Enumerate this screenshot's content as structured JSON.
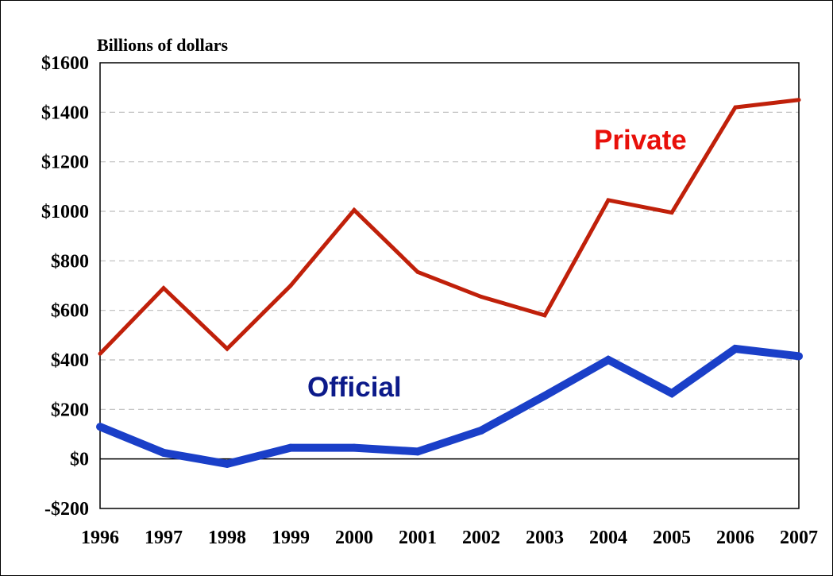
{
  "chart_data": {
    "type": "line",
    "title": "",
    "ylabel": "Billions of dollars",
    "xlabel": "",
    "x": [
      1996,
      1997,
      1998,
      1999,
      2000,
      2001,
      2002,
      2003,
      2004,
      2005,
      2006,
      2007
    ],
    "x_tick_labels": [
      "1996",
      "1997",
      "1998",
      "1999",
      "2000",
      "2001",
      "2002",
      "2003",
      "2004",
      "2005",
      "2006",
      "2007"
    ],
    "ylim": [
      -200,
      1600
    ],
    "y_ticks": [
      -200,
      0,
      200,
      400,
      600,
      800,
      1000,
      1200,
      1400,
      1600
    ],
    "y_tick_labels": [
      "-$200",
      "$0",
      "$200",
      "$400",
      "$600",
      "$800",
      "$1000",
      "$1200",
      "$1400",
      "$1600"
    ],
    "grid": "horizontal dashed",
    "zero_line": true,
    "legend": "none",
    "series": [
      {
        "name": "Private",
        "color": "#c0200a",
        "label_color": "#e8100a",
        "values": [
          425,
          690,
          445,
          700,
          1005,
          755,
          655,
          580,
          1045,
          995,
          1420,
          1450
        ]
      },
      {
        "name": "Official",
        "color": "#1a3fc8",
        "label_color": "#0c1a8a",
        "values": [
          130,
          25,
          -20,
          45,
          45,
          30,
          115,
          255,
          400,
          265,
          445,
          415
        ]
      }
    ]
  }
}
